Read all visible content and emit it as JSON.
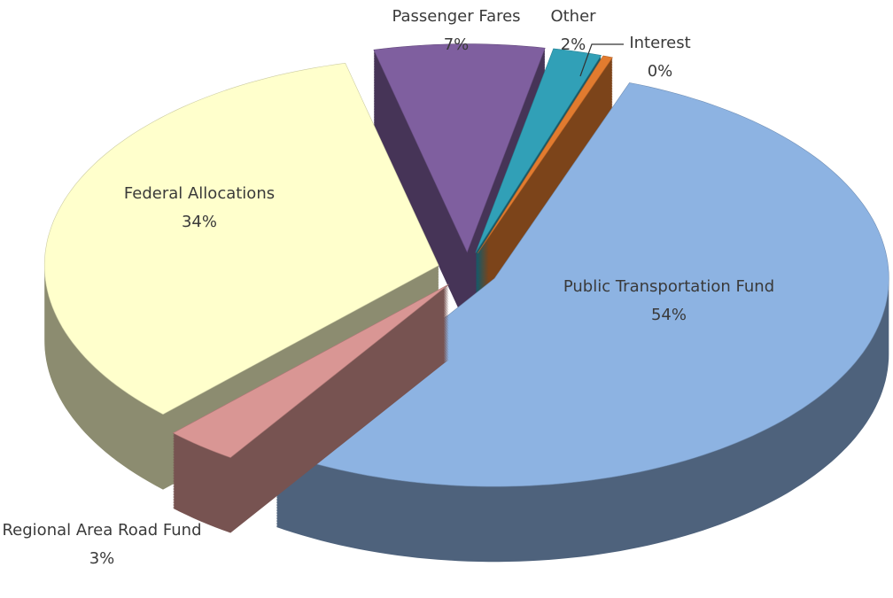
{
  "chart_data": {
    "type": "pie3d",
    "categories": [
      "Public Transportation Fund",
      "Regional Area Road Fund",
      "Federal Allocations",
      "Passenger Fares",
      "Other",
      "Interest"
    ],
    "values": [
      54,
      3,
      34,
      7,
      2,
      0.4
    ],
    "value_labels": [
      "54%",
      "3%",
      "34%",
      "7%",
      "2%",
      "0%"
    ],
    "colors": [
      "#8db3e2",
      "#d99694",
      "#ffffcc",
      "#7f5f9f",
      "#31a0b7",
      "#e17b2f"
    ]
  }
}
